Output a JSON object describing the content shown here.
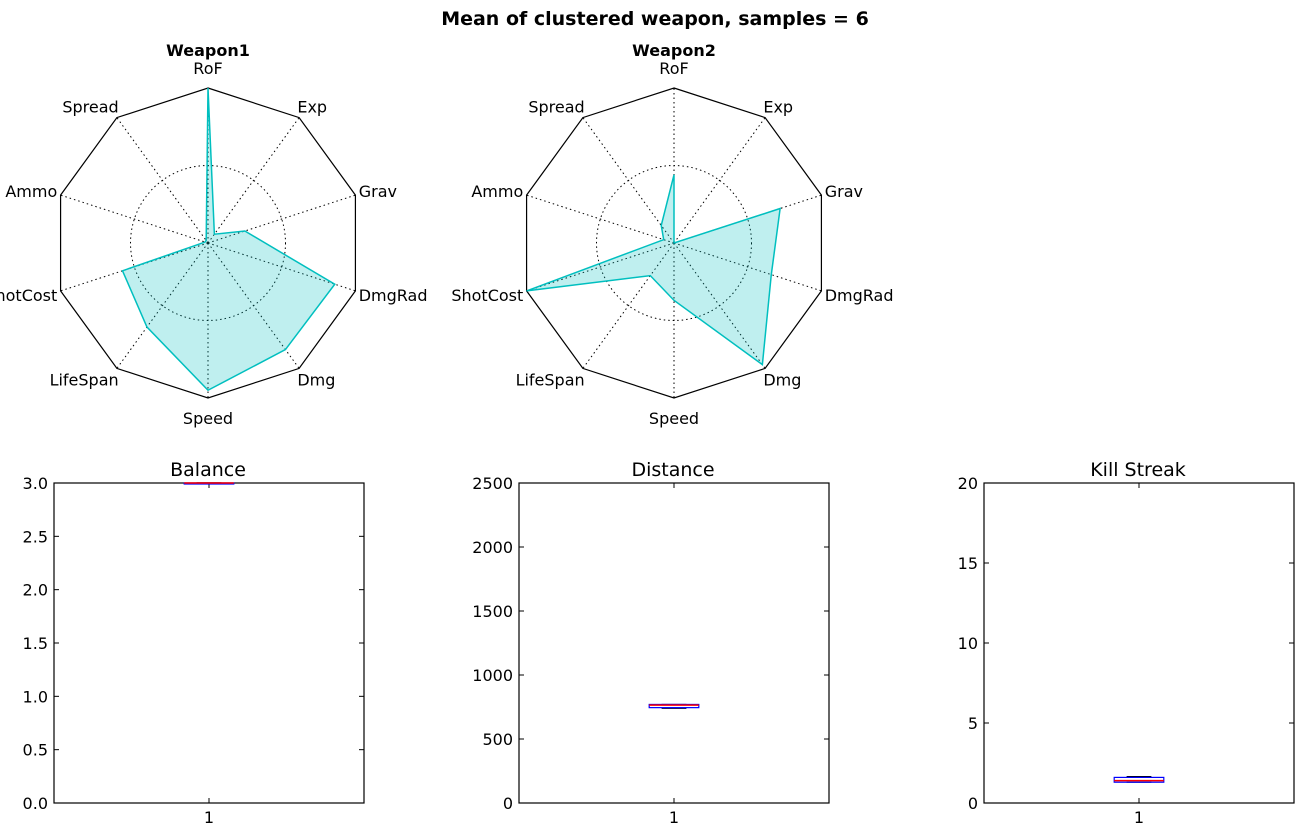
{
  "figure": {
    "title": "Mean of clustered weapon, samples = 6"
  },
  "chart_data": [
    {
      "type": "radar",
      "title": "Weapon1",
      "axes": [
        "RoF",
        "Exp",
        "Grav",
        "DmgRad",
        "Dmg",
        "Speed",
        "LifeSpan",
        "ShotCost",
        "Ammo",
        "Spread"
      ],
      "range": [
        0,
        1
      ],
      "grid_rings": [
        0.5,
        1.0
      ],
      "color": "#00bfbf",
      "values": [
        1.0,
        0.07,
        0.25,
        0.86,
        0.85,
        0.95,
        0.67,
        0.58,
        0.02,
        0.02
      ]
    },
    {
      "type": "radar",
      "title": "Weapon2",
      "axes": [
        "RoF",
        "Exp",
        "Grav",
        "DmgRad",
        "Dmg",
        "Speed",
        "LifeSpan",
        "ShotCost",
        "Ammo",
        "Spread"
      ],
      "range": [
        0,
        1
      ],
      "grid_rings": [
        0.5,
        1.0
      ],
      "color": "#00bfbf",
      "values": [
        0.44,
        0.0,
        0.72,
        0.66,
        0.97,
        0.37,
        0.26,
        1.0,
        0.07,
        0.14
      ]
    },
    {
      "type": "box",
      "title": "Balance",
      "categories": [
        "1"
      ],
      "ylim": [
        0,
        3.0
      ],
      "yticks": [
        "0.0",
        "0.5",
        "1.0",
        "1.5",
        "2.0",
        "2.5",
        "3.0"
      ],
      "ytick_values": [
        0,
        0.5,
        1.0,
        1.5,
        2.0,
        2.5,
        3.0
      ],
      "box": {
        "whisker_low": 3.0,
        "q1": 3.0,
        "median": 3.0,
        "q3": 3.0,
        "whisker_high": 3.0
      }
    },
    {
      "type": "box",
      "title": "Distance",
      "categories": [
        "1"
      ],
      "ylim": [
        0,
        2500
      ],
      "yticks": [
        "0",
        "500",
        "1000",
        "1500",
        "2000",
        "2500"
      ],
      "ytick_values": [
        0,
        500,
        1000,
        1500,
        2000,
        2500
      ],
      "box": {
        "whisker_low": 740,
        "q1": 745,
        "median": 765,
        "q3": 770,
        "whisker_high": 770
      }
    },
    {
      "type": "box",
      "title": "Kill Streak",
      "categories": [
        "1"
      ],
      "ylim": [
        0,
        20
      ],
      "yticks": [
        "0",
        "5",
        "10",
        "15",
        "20"
      ],
      "ytick_values": [
        0,
        5,
        10,
        15,
        20
      ],
      "box": {
        "whisker_low": 1.3,
        "q1": 1.3,
        "median": 1.4,
        "q3": 1.6,
        "whisker_high": 1.65
      }
    }
  ]
}
